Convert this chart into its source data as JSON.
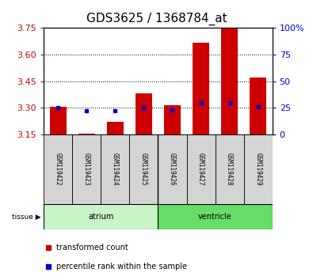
{
  "title": "GDS3625 / 1368784_at",
  "samples": [
    "GSM119422",
    "GSM119423",
    "GSM119424",
    "GSM119425",
    "GSM119426",
    "GSM119427",
    "GSM119428",
    "GSM119429"
  ],
  "red_values": [
    3.305,
    3.155,
    3.22,
    3.38,
    3.315,
    3.665,
    3.75,
    3.47
  ],
  "blue_pct": [
    25,
    22,
    22,
    25,
    23,
    30,
    30,
    26
  ],
  "y_min": 3.15,
  "y_max": 3.75,
  "y_ticks": [
    3.15,
    3.3,
    3.45,
    3.6,
    3.75
  ],
  "y2_ticks": [
    0,
    25,
    50,
    75,
    100
  ],
  "y2_labels": [
    "0",
    "25",
    "50",
    "75",
    "100%"
  ],
  "bar_color": "#cc0000",
  "blue_color": "#0000cc",
  "tick_color_left": "#cc0000",
  "tick_color_right": "#0000cc",
  "bar_width": 0.6,
  "legend_red": "transformed count",
  "legend_blue": "percentile rank within the sample",
  "title_fontsize": 11,
  "axis_fontsize": 8,
  "sample_fontsize": 5.5,
  "group_fontsize": 7,
  "legend_fontsize": 7,
  "atrium_color": "#c8f5c8",
  "ventricle_color": "#66dd66",
  "sample_box_color": "#d4d4d4"
}
